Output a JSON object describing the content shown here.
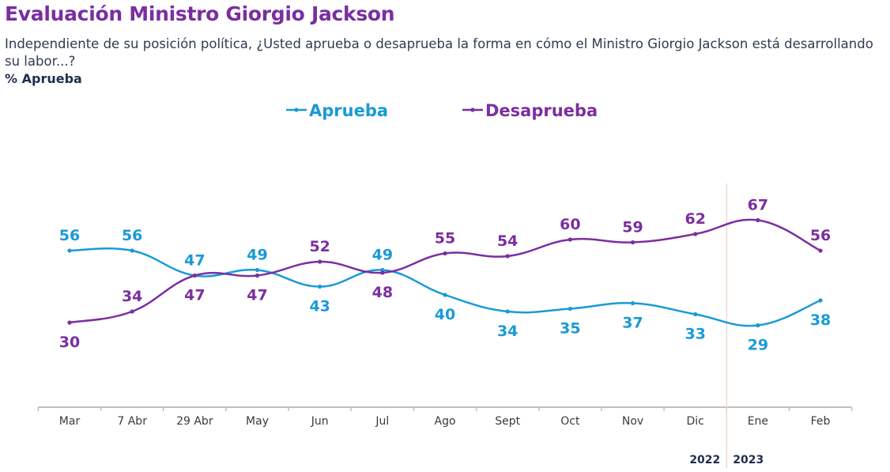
{
  "header": {
    "title": "Evaluación Ministro Giorgio Jackson",
    "question": "Independiente de su posición política, ¿Usted aprueba o desaprueba la forma en cómo el Ministro Giorgio Jackson está desarrollando su labor...?",
    "metric_label": "% Aprueba"
  },
  "chart_data": {
    "type": "line",
    "title": "Evaluación Ministro Giorgio Jackson",
    "xlabel": "",
    "ylabel": "%",
    "categories": [
      "Mar",
      "7 Abr",
      "29 Abr",
      "May",
      "Jun",
      "Jul",
      "Ago",
      "Sept",
      "Oct",
      "Nov",
      "Dic",
      "Ene",
      "Feb"
    ],
    "series": [
      {
        "name": "Aprueba",
        "color": "#1a9ad6",
        "values": [
          56,
          56,
          47,
          49,
          43,
          49,
          40,
          34,
          35,
          37,
          33,
          29,
          38
        ]
      },
      {
        "name": "Desaprueba",
        "color": "#7b2ea0",
        "values": [
          30,
          34,
          47,
          47,
          52,
          48,
          55,
          54,
          60,
          59,
          62,
          67,
          56
        ]
      }
    ],
    "label_positions": {
      "Aprueba": [
        "above",
        "above",
        "above",
        "above",
        "below",
        "above",
        "below",
        "below",
        "below",
        "below",
        "below",
        "below",
        "below"
      ],
      "Desaprueba": [
        "below",
        "above",
        "below",
        "below",
        "above",
        "below",
        "above",
        "above",
        "above",
        "above",
        "above",
        "above",
        "above"
      ]
    },
    "legend": {
      "position": "top-center",
      "entries": [
        "Aprueba",
        "Desaprueba"
      ]
    },
    "year_divider": {
      "between": [
        "Dic",
        "Ene"
      ],
      "left_label": "2022",
      "right_label": "2023"
    },
    "grid": false,
    "axis_color": "#bfbfbf",
    "divider_color": "#e8d2c2",
    "tick_label_color": "#3a3a3a",
    "year_label_color": "#1f2d4e"
  }
}
